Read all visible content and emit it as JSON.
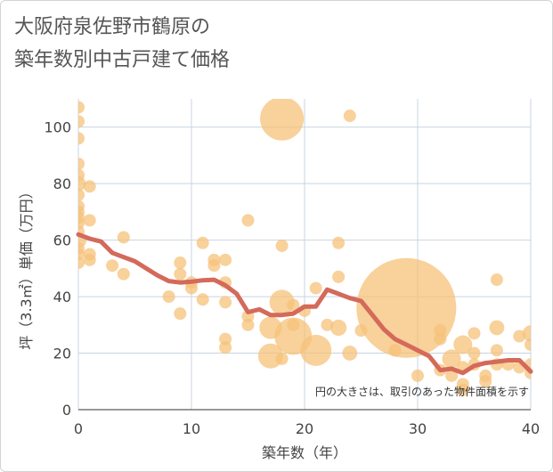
{
  "chart_data": {
    "type": "bubble-scatter-with-line",
    "title_line1": "大阪府泉佐野市鶴原の",
    "title_line2": "築年数別中古戸建て価格",
    "xlabel": "築年数（年）",
    "ylabel": "坪（3.3㎡）単価（万円）",
    "xlim": [
      0,
      40
    ],
    "ylim": [
      0,
      110
    ],
    "x_ticks": [
      "0",
      "10",
      "20",
      "30",
      "40"
    ],
    "y_ticks": [
      "0",
      "20",
      "40",
      "60",
      "80",
      "100"
    ],
    "note": "円の大きさは、取引のあった物件面積を示す",
    "colors": {
      "bubble": "#f5c27a",
      "line": "#d46a5a",
      "grid": "#c8d4e0"
    },
    "points": [
      {
        "x": 0,
        "y": 107,
        "s": 1
      },
      {
        "x": 0,
        "y": 102,
        "s": 1
      },
      {
        "x": 0,
        "y": 96,
        "s": 1
      },
      {
        "x": 0,
        "y": 87,
        "s": 1
      },
      {
        "x": 0,
        "y": 83,
        "s": 1
      },
      {
        "x": 0,
        "y": 80,
        "s": 1.2
      },
      {
        "x": 0,
        "y": 76,
        "s": 1
      },
      {
        "x": 0,
        "y": 72,
        "s": 1
      },
      {
        "x": 0,
        "y": 70,
        "s": 1
      },
      {
        "x": 0,
        "y": 68,
        "s": 1
      },
      {
        "x": 0,
        "y": 66,
        "s": 1
      },
      {
        "x": 0,
        "y": 63,
        "s": 1
      },
      {
        "x": 0,
        "y": 60,
        "s": 1.3
      },
      {
        "x": 0,
        "y": 57,
        "s": 1
      },
      {
        "x": 0,
        "y": 55,
        "s": 1
      },
      {
        "x": 0,
        "y": 52,
        "s": 1
      },
      {
        "x": 1,
        "y": 79,
        "s": 1
      },
      {
        "x": 1,
        "y": 67,
        "s": 1
      },
      {
        "x": 1,
        "y": 55,
        "s": 1
      },
      {
        "x": 1,
        "y": 53,
        "s": 1
      },
      {
        "x": 3,
        "y": 51,
        "s": 1
      },
      {
        "x": 4,
        "y": 61,
        "s": 1
      },
      {
        "x": 4,
        "y": 48,
        "s": 1
      },
      {
        "x": 8,
        "y": 40,
        "s": 1
      },
      {
        "x": 9,
        "y": 52,
        "s": 1
      },
      {
        "x": 9,
        "y": 48,
        "s": 1
      },
      {
        "x": 9,
        "y": 34,
        "s": 1
      },
      {
        "x": 10,
        "y": 45,
        "s": 1
      },
      {
        "x": 10,
        "y": 43,
        "s": 1
      },
      {
        "x": 11,
        "y": 59,
        "s": 1
      },
      {
        "x": 11,
        "y": 39,
        "s": 1
      },
      {
        "x": 12,
        "y": 53,
        "s": 1
      },
      {
        "x": 12,
        "y": 51,
        "s": 1
      },
      {
        "x": 13,
        "y": 53,
        "s": 1
      },
      {
        "x": 13,
        "y": 45,
        "s": 1
      },
      {
        "x": 13,
        "y": 38,
        "s": 1
      },
      {
        "x": 13,
        "y": 25,
        "s": 1
      },
      {
        "x": 13,
        "y": 22,
        "s": 1
      },
      {
        "x": 15,
        "y": 67,
        "s": 1
      },
      {
        "x": 15,
        "y": 33,
        "s": 1
      },
      {
        "x": 15,
        "y": 30,
        "s": 1
      },
      {
        "x": 17,
        "y": 29,
        "s": 1.8
      },
      {
        "x": 17,
        "y": 19,
        "s": 2
      },
      {
        "x": 18,
        "y": 103,
        "s": 3.5
      },
      {
        "x": 18,
        "y": 58,
        "s": 1
      },
      {
        "x": 18,
        "y": 38,
        "s": 2
      },
      {
        "x": 18,
        "y": 18,
        "s": 1
      },
      {
        "x": 19,
        "y": 37,
        "s": 1
      },
      {
        "x": 19,
        "y": 30,
        "s": 1
      },
      {
        "x": 19,
        "y": 26,
        "s": 3
      },
      {
        "x": 20,
        "y": 35,
        "s": 1
      },
      {
        "x": 21,
        "y": 43,
        "s": 1
      },
      {
        "x": 21,
        "y": 21,
        "s": 2.5
      },
      {
        "x": 22,
        "y": 30,
        "s": 1
      },
      {
        "x": 23,
        "y": 59,
        "s": 1
      },
      {
        "x": 23,
        "y": 47,
        "s": 1
      },
      {
        "x": 23,
        "y": 29,
        "s": 1.3
      },
      {
        "x": 24,
        "y": 104,
        "s": 1
      },
      {
        "x": 24,
        "y": 20,
        "s": 1.2
      },
      {
        "x": 25,
        "y": 28,
        "s": 1
      },
      {
        "x": 28,
        "y": 21,
        "s": 1
      },
      {
        "x": 29,
        "y": 36,
        "s": 8
      },
      {
        "x": 30,
        "y": 12,
        "s": 1
      },
      {
        "x": 32,
        "y": 28,
        "s": 1
      },
      {
        "x": 32,
        "y": 25,
        "s": 1
      },
      {
        "x": 32,
        "y": 14,
        "s": 1
      },
      {
        "x": 33,
        "y": 18,
        "s": 1.5
      },
      {
        "x": 33,
        "y": 12,
        "s": 1
      },
      {
        "x": 34,
        "y": 23,
        "s": 1.5
      },
      {
        "x": 34,
        "y": 15,
        "s": 1
      },
      {
        "x": 34,
        "y": 9,
        "s": 1
      },
      {
        "x": 34,
        "y": 7,
        "s": 1
      },
      {
        "x": 35,
        "y": 27,
        "s": 1
      },
      {
        "x": 35,
        "y": 20,
        "s": 1
      },
      {
        "x": 35,
        "y": 16,
        "s": 1
      },
      {
        "x": 36,
        "y": 12,
        "s": 1
      },
      {
        "x": 36,
        "y": 10,
        "s": 1
      },
      {
        "x": 37,
        "y": 46,
        "s": 1
      },
      {
        "x": 37,
        "y": 29,
        "s": 1.2
      },
      {
        "x": 37,
        "y": 21,
        "s": 1
      },
      {
        "x": 37,
        "y": 16,
        "s": 1
      },
      {
        "x": 38,
        "y": 16,
        "s": 1
      },
      {
        "x": 39,
        "y": 26,
        "s": 1
      },
      {
        "x": 39,
        "y": 15,
        "s": 1
      },
      {
        "x": 40,
        "y": 27,
        "s": 1.3
      },
      {
        "x": 40,
        "y": 23,
        "s": 1
      },
      {
        "x": 40,
        "y": 16,
        "s": 1
      },
      {
        "x": 40,
        "y": 13,
        "s": 1
      }
    ],
    "trend": [
      {
        "x": 0,
        "y": 62
      },
      {
        "x": 1,
        "y": 60.5
      },
      {
        "x": 2,
        "y": 59.5
      },
      {
        "x": 3,
        "y": 55.5
      },
      {
        "x": 4,
        "y": 54
      },
      {
        "x": 5,
        "y": 52.5
      },
      {
        "x": 6,
        "y": 50
      },
      {
        "x": 7,
        "y": 47.5
      },
      {
        "x": 8,
        "y": 45.5
      },
      {
        "x": 9,
        "y": 45
      },
      {
        "x": 10,
        "y": 45.3
      },
      {
        "x": 11,
        "y": 45.8
      },
      {
        "x": 12,
        "y": 46
      },
      {
        "x": 13,
        "y": 44
      },
      {
        "x": 14,
        "y": 41
      },
      {
        "x": 15,
        "y": 34.5
      },
      {
        "x": 16,
        "y": 35.5
      },
      {
        "x": 17,
        "y": 33.5
      },
      {
        "x": 18,
        "y": 33.5
      },
      {
        "x": 19,
        "y": 34
      },
      {
        "x": 20,
        "y": 36.5
      },
      {
        "x": 21,
        "y": 36.5
      },
      {
        "x": 22,
        "y": 42.5
      },
      {
        "x": 23,
        "y": 41
      },
      {
        "x": 24,
        "y": 39.5
      },
      {
        "x": 25,
        "y": 38.5
      },
      {
        "x": 26,
        "y": 33.5
      },
      {
        "x": 27,
        "y": 28.5
      },
      {
        "x": 28,
        "y": 25
      },
      {
        "x": 29,
        "y": 23
      },
      {
        "x": 30,
        "y": 21
      },
      {
        "x": 31,
        "y": 19
      },
      {
        "x": 32,
        "y": 14
      },
      {
        "x": 33,
        "y": 14.5
      },
      {
        "x": 34,
        "y": 13
      },
      {
        "x": 35,
        "y": 15.5
      },
      {
        "x": 36,
        "y": 16.5
      },
      {
        "x": 37,
        "y": 17
      },
      {
        "x": 38,
        "y": 17.5
      },
      {
        "x": 39,
        "y": 17.5
      },
      {
        "x": 40,
        "y": 13.5
      }
    ]
  }
}
